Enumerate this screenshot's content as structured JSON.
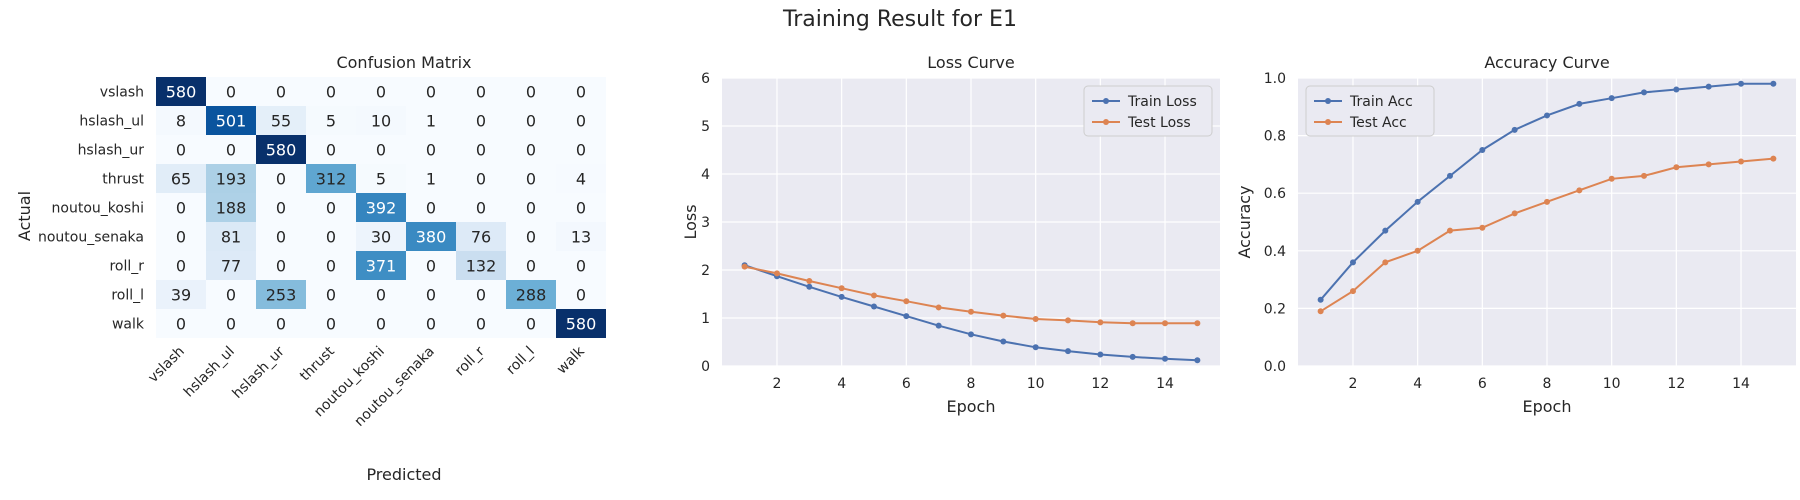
{
  "figure": {
    "title": "Training Result for E1"
  },
  "chart_data": [
    {
      "type": "heatmap",
      "title": "Confusion Matrix",
      "xlabel": "Predicted",
      "ylabel": "Actual",
      "colormap": "Blues",
      "x_categories": [
        "vslash",
        "hslash_ul",
        "hslash_ur",
        "thrust",
        "noutou_koshi",
        "noutou_senaka",
        "roll_r",
        "roll_l",
        "walk"
      ],
      "y_categories": [
        "vslash",
        "hslash_ul",
        "hslash_ur",
        "thrust",
        "noutou_koshi",
        "noutou_senaka",
        "roll_r",
        "roll_l",
        "walk"
      ],
      "values": [
        [
          580,
          0,
          0,
          0,
          0,
          0,
          0,
          0,
          0
        ],
        [
          8,
          501,
          55,
          5,
          10,
          1,
          0,
          0,
          0
        ],
        [
          0,
          0,
          580,
          0,
          0,
          0,
          0,
          0,
          0
        ],
        [
          65,
          193,
          0,
          312,
          5,
          1,
          0,
          0,
          4
        ],
        [
          0,
          188,
          0,
          0,
          392,
          0,
          0,
          0,
          0
        ],
        [
          0,
          81,
          0,
          0,
          30,
          380,
          76,
          0,
          13
        ],
        [
          0,
          77,
          0,
          0,
          371,
          0,
          132,
          0,
          0
        ],
        [
          39,
          0,
          253,
          0,
          0,
          0,
          0,
          288,
          0
        ],
        [
          0,
          0,
          0,
          0,
          0,
          0,
          0,
          0,
          580
        ]
      ],
      "vmax": 580
    },
    {
      "type": "line",
      "title": "Loss Curve",
      "xlabel": "Epoch",
      "ylabel": "Loss",
      "xlim": [
        0.3,
        15.7
      ],
      "ylim": [
        0,
        6
      ],
      "xticks": [
        2,
        4,
        6,
        8,
        10,
        12,
        14
      ],
      "yticks": [
        0,
        1,
        2,
        3,
        4,
        5,
        6
      ],
      "grid": true,
      "legend_loc": "upper right",
      "x": [
        1,
        2,
        3,
        4,
        5,
        6,
        7,
        8,
        9,
        10,
        11,
        12,
        13,
        14,
        15
      ],
      "series": [
        {
          "name": "Train Loss",
          "color": "#4c72b0",
          "values": [
            2.1,
            1.87,
            1.65,
            1.44,
            1.24,
            1.04,
            0.84,
            0.66,
            0.51,
            0.39,
            0.31,
            0.24,
            0.19,
            0.15,
            0.12
          ]
        },
        {
          "name": "Test Loss",
          "color": "#dd8452",
          "values": [
            2.07,
            1.93,
            1.77,
            1.62,
            1.47,
            1.35,
            1.22,
            1.13,
            1.05,
            0.98,
            0.95,
            0.91,
            0.89,
            0.89,
            0.89
          ]
        }
      ]
    },
    {
      "type": "line",
      "title": "Accuracy Curve",
      "xlabel": "Epoch",
      "ylabel": "Accuracy",
      "xlim": [
        0.3,
        15.7
      ],
      "ylim": [
        0,
        1.0
      ],
      "xticks": [
        2,
        4,
        6,
        8,
        10,
        12,
        14
      ],
      "yticks": [
        0.0,
        0.2,
        0.4,
        0.6,
        0.8,
        1.0
      ],
      "grid": true,
      "legend_loc": "upper left",
      "x": [
        1,
        2,
        3,
        4,
        5,
        6,
        7,
        8,
        9,
        10,
        11,
        12,
        13,
        14,
        15
      ],
      "series": [
        {
          "name": "Train Acc",
          "color": "#4c72b0",
          "values": [
            0.23,
            0.36,
            0.47,
            0.57,
            0.66,
            0.75,
            0.82,
            0.87,
            0.91,
            0.93,
            0.95,
            0.96,
            0.97,
            0.98,
            0.98
          ]
        },
        {
          "name": "Test Acc",
          "color": "#dd8452",
          "values": [
            0.19,
            0.26,
            0.36,
            0.4,
            0.47,
            0.48,
            0.53,
            0.57,
            0.61,
            0.65,
            0.66,
            0.69,
            0.7,
            0.71,
            0.72
          ]
        }
      ]
    }
  ]
}
